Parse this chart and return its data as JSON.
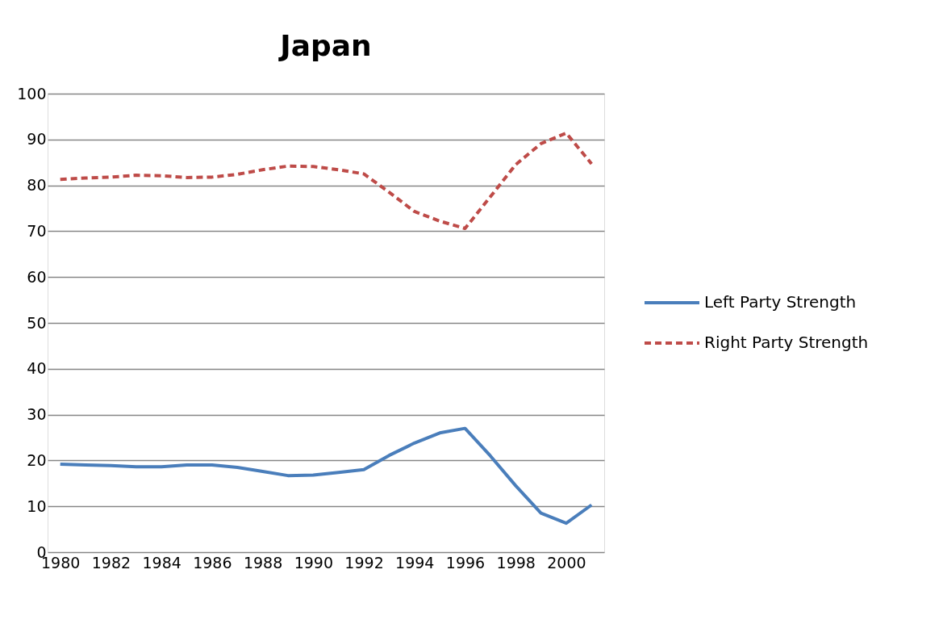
{
  "chart_data": {
    "type": "line",
    "title": "Japan",
    "categories": [
      "1980",
      null,
      "1982",
      null,
      "1984",
      null,
      "1986",
      null,
      "1988",
      null,
      "1990",
      null,
      "1992",
      null,
      "1994",
      null,
      "1996",
      null,
      "1998",
      null,
      "2000",
      null
    ],
    "series": [
      {
        "name": "Left Party Strength",
        "color": "#4a7ebb",
        "line_style": "solid",
        "values": [
          19.2,
          19.0,
          18.9,
          18.6,
          18.6,
          19.0,
          19.0,
          18.5,
          17.6,
          16.7,
          16.8,
          17.4,
          18.0,
          21.1,
          23.8,
          26.0,
          27.0,
          21.0,
          14.5,
          8.5,
          6.3,
          10.3
        ]
      },
      {
        "name": "Right Party Strength",
        "color": "#be4b48",
        "line_style": "dashed",
        "values": [
          81.3,
          81.6,
          81.8,
          82.2,
          82.1,
          81.7,
          81.8,
          82.4,
          83.4,
          84.2,
          84.1,
          83.4,
          82.5,
          78.5,
          74.3,
          72.2,
          70.6,
          77.5,
          84.5,
          89.1,
          91.4,
          84.7
        ]
      }
    ],
    "ylim": [
      0,
      100
    ],
    "yticks": [
      0,
      10,
      20,
      30,
      40,
      50,
      60,
      70,
      80,
      90,
      100
    ],
    "grid": "y",
    "legend": "right",
    "marker": "none"
  }
}
